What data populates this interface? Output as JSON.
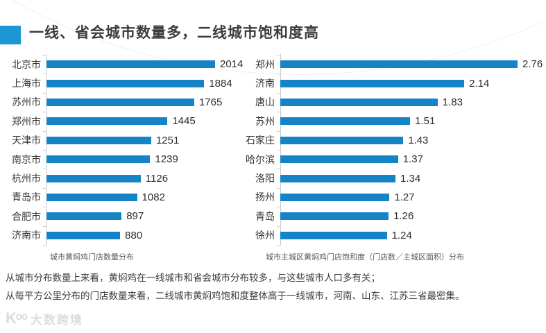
{
  "title": {
    "text": "一线、省会城市数量多，二线城市饱和度高"
  },
  "colors": {
    "bar": "#1484c6",
    "accent": "#1e96d3",
    "axis": "#c9c9c9",
    "title_text": "#3c3c3c",
    "label_text": "#333333",
    "caption_text": "#595959",
    "footer_text": "#3a3a3a",
    "watermark": "#dcdcdc"
  },
  "chart_data": [
    {
      "type": "bar",
      "orientation": "horizontal",
      "title": "城市黄焖鸡门店数量分布",
      "categories": [
        "北京市",
        "上海市",
        "苏州市",
        "郑州市",
        "天津市",
        "南京市",
        "杭州市",
        "青岛市",
        "合肥市",
        "济南市"
      ],
      "values": [
        2014,
        1884,
        1765,
        1445,
        1251,
        1239,
        1126,
        1082,
        897,
        880
      ],
      "value_texts": [
        "2014",
        "1884",
        "1765",
        "1445",
        "1251",
        "1239",
        "1126",
        "1082",
        "897",
        "880"
      ],
      "xlabel": "",
      "ylabel": "",
      "xlim": [
        0,
        2014
      ],
      "grid": false,
      "legend": false,
      "value_labels": true
    },
    {
      "type": "bar",
      "orientation": "horizontal",
      "title": "城市主城区黄焖鸡门店饱和度（门店数／主城区面积）分布",
      "categories": [
        "郑州",
        "济南",
        "唐山",
        "苏州",
        "石家庄",
        "哈尔滨",
        "洛阳",
        "扬州",
        "青岛",
        "徐州"
      ],
      "values": [
        2.76,
        2.14,
        1.83,
        1.51,
        1.43,
        1.37,
        1.34,
        1.27,
        1.26,
        1.24
      ],
      "value_texts": [
        "2.76",
        "2.14",
        "1.83",
        "1.51",
        "1.43",
        "1.37",
        "1.34",
        "1.27",
        "1.26",
        "1.24"
      ],
      "xlabel": "",
      "ylabel": "",
      "xlim": [
        0,
        2.76
      ],
      "grid": false,
      "legend": false,
      "value_labels": true
    }
  ],
  "footer": {
    "line1": "从城市分布数量上来看，黄焖鸡在一线城市和省会城市分布较多，与这些城市人口多有关；",
    "line2": "从每平方公里分布的门店数量来看，二线城市黄焖鸡饱和度整体高于一线城市，河南、山东、江苏三省最密集。"
  },
  "watermark": {
    "logo": "Kᵒᵒ",
    "text": "大数跨境"
  }
}
